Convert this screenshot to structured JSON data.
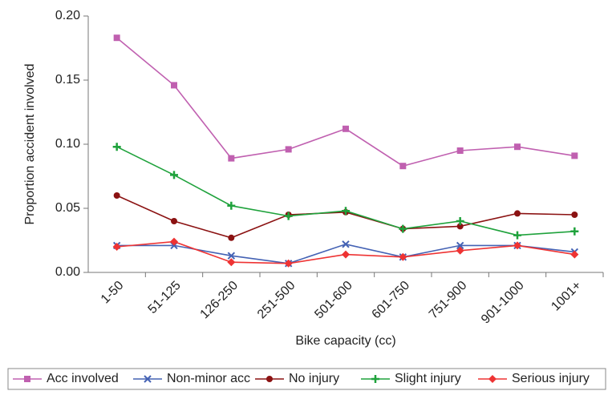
{
  "chart_data": {
    "type": "line",
    "y_label": "Proportion accident involved",
    "x_label": "Bike capacity (cc)",
    "categories": [
      "1-50",
      "51-125",
      "126-250",
      "251-500",
      "501-600",
      "601-750",
      "751-900",
      "901-1000",
      "1001+"
    ],
    "series": [
      {
        "name": "Acc involved",
        "color": "#c060b0",
        "marker": "square",
        "values": [
          0.183,
          0.146,
          0.089,
          0.096,
          0.112,
          0.083,
          0.095,
          0.098,
          0.091
        ]
      },
      {
        "name": "Non-minor acc",
        "color": "#4462b4",
        "marker": "x",
        "values": [
          0.021,
          0.021,
          0.013,
          0.007,
          0.022,
          0.012,
          0.021,
          0.021,
          0.016
        ]
      },
      {
        "name": "No injury",
        "color": "#8b1212",
        "marker": "circle",
        "values": [
          0.06,
          0.04,
          0.027,
          0.045,
          0.047,
          0.034,
          0.036,
          0.046,
          0.045
        ]
      },
      {
        "name": "Slight injury",
        "color": "#1fa23c",
        "marker": "plus",
        "values": [
          0.098,
          0.076,
          0.052,
          0.044,
          0.048,
          0.034,
          0.04,
          0.029,
          0.032
        ]
      },
      {
        "name": "Serious injury",
        "color": "#ee3333",
        "marker": "diamond",
        "values": [
          0.02,
          0.024,
          0.008,
          0.007,
          0.014,
          0.012,
          0.017,
          0.021,
          0.014
        ]
      }
    ],
    "ylim": [
      0,
      0.2
    ],
    "yticks": [
      {
        "value": 0,
        "label": "0.00"
      },
      0.05,
      {
        "value": 0.1,
        "label": "0.10"
      },
      0.15,
      {
        "value": 0.2,
        "label": "0.20"
      }
    ],
    "grid": false,
    "legend": "bottom"
  }
}
